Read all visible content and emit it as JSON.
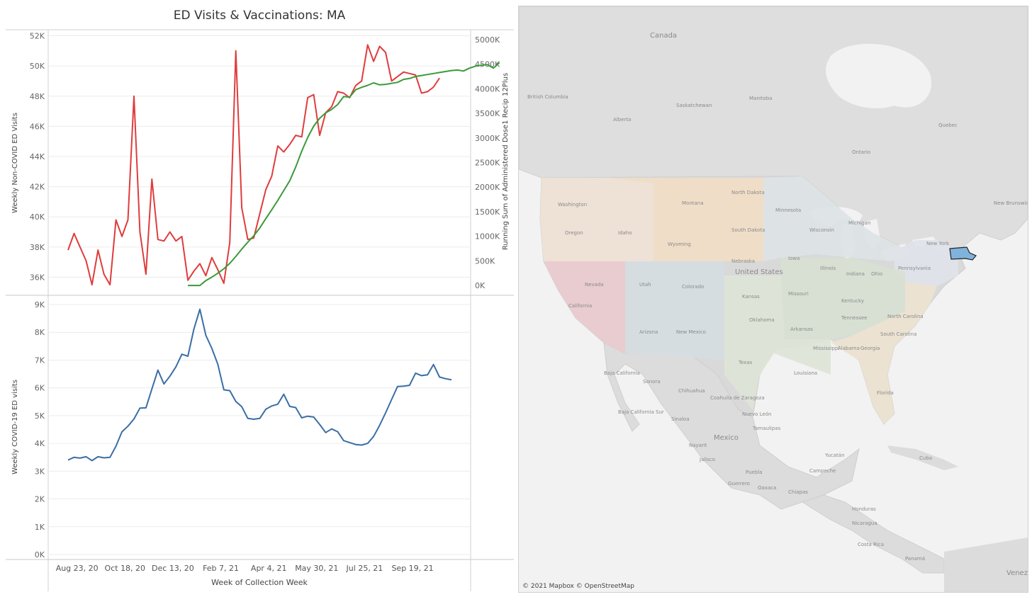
{
  "title": "ED Visits & Vaccinations: MA",
  "chart_data": [
    {
      "type": "line",
      "panel": "top",
      "xlabel": "Week of Collection Week",
      "x_tick_labels": [
        "Aug 23, 20",
        "Oct 18, 20",
        "Dec 13, 20",
        "Feb 7, 21",
        "Apr 4, 21",
        "May 30, 21",
        "Jul 25, 21",
        "Sep 19, 21"
      ],
      "ylabel": "Weekly Non-COVID ED Visits",
      "ylim": [
        34800,
        52400
      ],
      "y_ticks": [
        36000,
        38000,
        40000,
        42000,
        44000,
        46000,
        48000,
        50000,
        52000
      ],
      "y_tick_labels": [
        "36K",
        "38K",
        "40K",
        "42K",
        "44K",
        "46K",
        "48K",
        "50K",
        "52K"
      ],
      "y2label": "Running Sum of Administered Dose1 Recip 12Plus",
      "y2lim": [
        -200000,
        5200000
      ],
      "y2_ticks": [
        0,
        500000,
        1000000,
        1500000,
        2000000,
        2500000,
        3000000,
        3500000,
        4000000,
        4500000,
        5000000
      ],
      "y2_tick_labels": [
        "0K",
        "500K",
        "1000K",
        "1500K",
        "2000K",
        "2500K",
        "3000K",
        "3500K",
        "4000K",
        "4500K",
        "5000K"
      ],
      "x_start": 0,
      "x_step_weeks": 1,
      "series": [
        {
          "axis": "left",
          "color": "#e03c3c",
          "values": [
            37800,
            38900,
            38000,
            37100,
            35500,
            37800,
            36200,
            35500,
            39800,
            38700,
            39800,
            48000,
            39000,
            36200,
            42500,
            38500,
            38400,
            39000,
            38400,
            38700,
            35800,
            36400,
            36900,
            36100,
            37300,
            36500,
            35600,
            38300,
            51000,
            40600,
            38500,
            38600,
            40200,
            41800,
            42700,
            44700,
            44300,
            44800,
            45400,
            45300,
            47900,
            48100,
            45400,
            46900,
            47300,
            48300,
            48200,
            47900,
            48700,
            49000,
            51400,
            50300,
            51300,
            50900,
            49000,
            49300,
            49600,
            49500,
            49400,
            48200,
            48300,
            48600,
            49200
          ]
        },
        {
          "axis": "right",
          "color": "#3a9a3a",
          "x_start": 20,
          "values": [
            0,
            0,
            0,
            100000,
            170000,
            250000,
            340000,
            450000,
            590000,
            740000,
            880000,
            1010000,
            1170000,
            1360000,
            1540000,
            1730000,
            1930000,
            2130000,
            2410000,
            2730000,
            3010000,
            3240000,
            3400000,
            3510000,
            3580000,
            3680000,
            3840000,
            3830000,
            3980000,
            4030000,
            4070000,
            4120000,
            4080000,
            4090000,
            4110000,
            4130000,
            4190000,
            4210000,
            4250000,
            4270000,
            4290000,
            4310000,
            4330000,
            4350000,
            4370000,
            4380000,
            4360000,
            4420000,
            4460000,
            4480000,
            4490000,
            4420000,
            4530000
          ]
        }
      ]
    },
    {
      "type": "line",
      "panel": "bottom",
      "ylabel": "Weekly COVID-19 ED visits",
      "ylim": [
        0,
        9000
      ],
      "y_ticks": [
        0,
        1000,
        2000,
        3000,
        4000,
        5000,
        6000,
        7000,
        8000,
        9000
      ],
      "y_tick_labels": [
        "0K",
        "1K",
        "2K",
        "3K",
        "4K",
        "5K",
        "6K",
        "7K",
        "8K",
        "9K"
      ],
      "x_start": 0,
      "series": [
        {
          "color": "#3a6ea5",
          "values": [
            3400,
            3500,
            3470,
            3520,
            3380,
            3520,
            3480,
            3500,
            3900,
            4420,
            4620,
            4880,
            5270,
            5280,
            5960,
            6640,
            6140,
            6420,
            6760,
            7210,
            7140,
            8110,
            8830,
            7890,
            7420,
            6850,
            5930,
            5900,
            5510,
            5320,
            4900,
            4870,
            4900,
            5230,
            5350,
            5410,
            5770,
            5330,
            5290,
            4920,
            4980,
            4950,
            4680,
            4390,
            4520,
            4420,
            4100,
            4030,
            3960,
            3940,
            4000,
            4250,
            4650,
            5100,
            5580,
            6050,
            6060,
            6090,
            6530,
            6440,
            6470,
            6840,
            6390,
            6330,
            6290
          ]
        }
      ]
    }
  ],
  "map": {
    "labels": [
      "Canada",
      "British Columbia",
      "Alberta",
      "Saskatchewan",
      "Manitoba",
      "Ontario",
      "Quebec",
      "New Brunswick",
      "Washington",
      "Oregon",
      "Idaho",
      "Montana",
      "North Dakota",
      "South Dakota",
      "Wyoming",
      "Nebraska",
      "Minnesota",
      "Wisconsin",
      "Michigan",
      "Iowa",
      "Illinois",
      "Indiana",
      "Ohio",
      "Pennsylvania",
      "New York",
      "Nevada",
      "California",
      "Utah",
      "Colorado",
      "Arizona",
      "New Mexico",
      "Kansas",
      "Oklahoma",
      "Texas",
      "Missouri",
      "Arkansas",
      "Kentucky",
      "Tennessee",
      "Mississippi",
      "Alabama",
      "Georgia",
      "North Carolina",
      "South Carolina",
      "Louisiana",
      "Florida",
      "United States",
      "Baja California",
      "Baja California Sur",
      "Sonora",
      "Chihuahua",
      "Coahuila de Zaragoza",
      "Nuevo León",
      "Tamaulipas",
      "Sinaloa",
      "Mexico",
      "Nayarit",
      "Jalisco",
      "Puebla",
      "Oaxaca",
      "Guerrero",
      "Chiapas",
      "Yucatán",
      "Campeche",
      "Cuba",
      "Honduras",
      "Nicaragua",
      "Costa Rica",
      "Panamá",
      "Venez"
    ],
    "highlighted_state": "Massachusetts",
    "highlight_color": "#7fb3dd",
    "attribution": "© 2021 Mapbox © OpenStreetMap"
  }
}
